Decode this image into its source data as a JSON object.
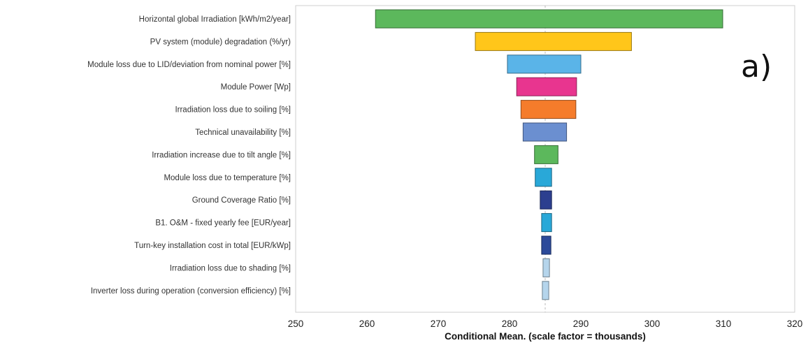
{
  "chart_data": {
    "type": "bar",
    "orientation": "horizontal",
    "style": "tornado",
    "xlabel": "Conditional Mean. (scale factor = thousands)",
    "xlim": [
      250,
      320
    ],
    "xticks": [
      250,
      260,
      270,
      280,
      290,
      300,
      310,
      320
    ],
    "center_line": 285,
    "panel_label": "a)",
    "grid": false,
    "categories": [
      "Horizontal global Irradiation [kWh/m2/year]",
      "PV system (module) degradation (%/yr)",
      "Module loss due to LID/deviation from nominal power [%]",
      "Module Power [Wp]",
      "Irradiation loss due to soiling [%]",
      "Technical unavailability [%]",
      "Irradiation increase due to tilt angle [%]",
      "Module loss due to temperature [%]",
      "Ground Coverage Ratio [%]",
      "B1. O&M - fixed yearly fee [EUR/year]",
      "Turn-key installation cost in total [EUR/kWp]",
      "Irradiation loss due to shading [%]",
      "Inverter loss during operation (conversion efficiency) [%]"
    ],
    "ranges": [
      [
        261.2,
        309.9
      ],
      [
        275.2,
        297.1
      ],
      [
        279.7,
        290.0
      ],
      [
        281.0,
        289.4
      ],
      [
        281.6,
        289.3
      ],
      [
        281.9,
        288.0
      ],
      [
        283.5,
        286.8
      ],
      [
        283.6,
        285.9
      ],
      [
        284.3,
        285.9
      ],
      [
        284.5,
        285.9
      ],
      [
        284.5,
        285.8
      ],
      [
        284.7,
        285.6
      ],
      [
        284.6,
        285.5
      ]
    ],
    "colors": [
      "#5cb85c",
      "#ffc61a",
      "#5ab4e8",
      "#e8358f",
      "#f57c2b",
      "#6b8fd0",
      "#5cb85c",
      "#29a8d8",
      "#2c3f8f",
      "#29a8d8",
      "#2c4a9a",
      "#b5d5ec",
      "#b5d5ec"
    ]
  }
}
